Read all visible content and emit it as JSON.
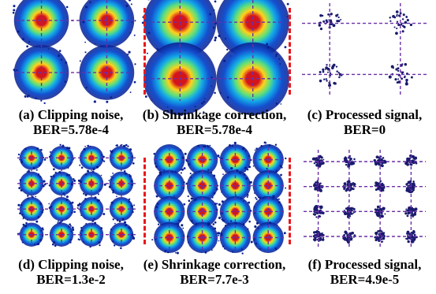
{
  "figure": {
    "panels": [
      {
        "id": "a",
        "label": "(a) Clipping noise,",
        "ber": "BER=5.78e-4",
        "grid": 2,
        "style": "heat-large"
      },
      {
        "id": "b",
        "label": "(b) Shrinkage correction,",
        "ber": "BER=5.78e-4",
        "grid": 2,
        "style": "heat-xlarge"
      },
      {
        "id": "c",
        "label": "(c) Processed signal,",
        "ber": "BER=0",
        "grid": 2,
        "style": "sparse"
      },
      {
        "id": "d",
        "label": "(d) Clipping noise,",
        "ber": "BER=1.3e-2",
        "grid": 4,
        "style": "heat-small"
      },
      {
        "id": "e",
        "label": "(e) Shrinkage correction,",
        "ber": "BER=7.7e-3",
        "grid": 4,
        "style": "heat-medium"
      },
      {
        "id": "f",
        "label": "(f) Processed signal,",
        "ber": "BER=4.9e-5",
        "grid": 4,
        "style": "sparse"
      }
    ],
    "colors": {
      "guide_line": "#6a2fa8",
      "separator": "#e8171b",
      "heat_outer": "#0a1f8f",
      "heat_mid": "#12a8e8",
      "heat_core": "#ffd21a",
      "heat_peak": "#d4141c",
      "sparse_dot": "#1a1a6e"
    }
  }
}
